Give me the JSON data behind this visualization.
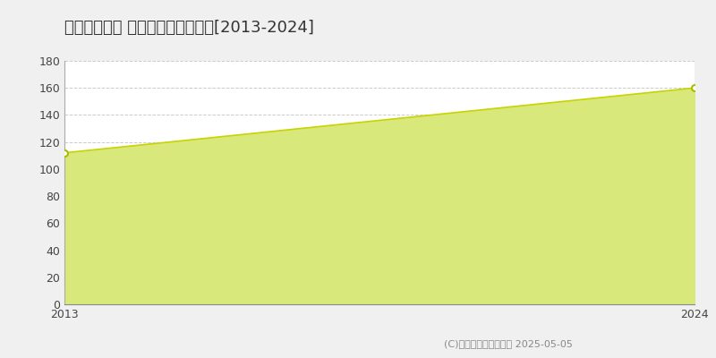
{
  "title": "日野市東平山 マンション価格游移[2013-2024]",
  "years": [
    2013,
    2024
  ],
  "values": [
    112,
    160
  ],
  "xlim": [
    2013,
    2024
  ],
  "ylim": [
    0,
    180
  ],
  "yticks": [
    0,
    20,
    40,
    60,
    80,
    100,
    120,
    140,
    160,
    180
  ],
  "xtick_labels": [
    "2013",
    "2024"
  ],
  "line_color": "#c8d400",
  "fill_color": "#d8e87a",
  "fill_alpha": 1.0,
  "marker_color": "#ffffff",
  "marker_edge_color": "#aabb00",
  "grid_color": "#cccccc",
  "bg_color": "#ffffff",
  "fig_bg_color": "#f0f0f0",
  "copyright_text": "(C)土地価格ドットコム 2025-05-05",
  "title_fontsize": 13,
  "axis_fontsize": 9,
  "legend_fontsize": 9,
  "copyright_fontsize": 8
}
